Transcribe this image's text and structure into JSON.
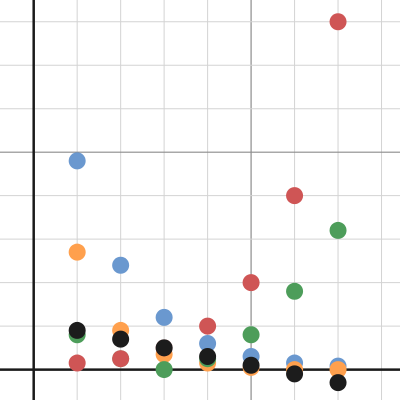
{
  "chart_data": {
    "type": "scatter",
    "xlim": [
      -0.775,
      8.425
    ],
    "ylim": [
      -0.7,
      8.5
    ],
    "grid": true,
    "grid_minor_step": 1,
    "grid_major_step": 5,
    "axes_visible": true,
    "tick_labels_visible": false,
    "x": [
      1,
      2,
      3,
      4,
      5,
      6,
      7
    ],
    "series": [
      {
        "color": "#6a98cf",
        "values": [
          4.8,
          2.4,
          1.2,
          0.6,
          0.3,
          0.15,
          0.08
        ]
      },
      {
        "color": "#ffa04d",
        "values": [
          2.7,
          0.9,
          0.35,
          0.15,
          0.05,
          0.0,
          0.0
        ]
      },
      {
        "color": "#4d9d5a",
        "values": [
          0.8,
          0.25,
          0.0,
          0.25,
          0.8,
          1.8,
          3.2
        ]
      },
      {
        "color": "#cf5555",
        "values": [
          0.15,
          0.25,
          0.5,
          1.0,
          2.0,
          4.0,
          8.0
        ]
      },
      {
        "color": "#1c1c1c",
        "values": [
          0.9,
          0.7,
          0.5,
          0.3,
          0.1,
          -0.1,
          -0.3
        ]
      }
    ]
  }
}
